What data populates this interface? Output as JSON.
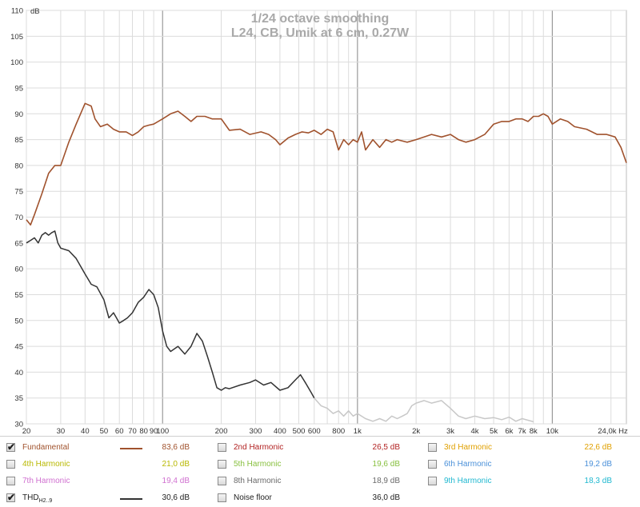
{
  "chart_data": {
    "type": "line",
    "title": "1/24 octave smoothing",
    "subtitle": "L24, CB, Umik at 6 cm, 0.27W",
    "ylabel": "dB",
    "xlabel": "Hz",
    "x_scale": "log",
    "xlim": [
      20,
      24000
    ],
    "ylim": [
      30,
      110
    ],
    "grid": true,
    "y_ticks": [
      30,
      35,
      40,
      45,
      50,
      55,
      60,
      65,
      70,
      75,
      80,
      85,
      90,
      95,
      100,
      105,
      110
    ],
    "y_tick_labels": [
      "30",
      "35",
      "40",
      "45",
      "50",
      "55",
      "60",
      "65",
      "70",
      "75",
      "80",
      "85",
      "90",
      "95",
      "100",
      "105",
      "110"
    ],
    "x_ticks": [
      20,
      30,
      40,
      50,
      60,
      70,
      80,
      90,
      100,
      200,
      300,
      400,
      500,
      600,
      800,
      1000,
      2000,
      3000,
      4000,
      5000,
      6000,
      7000,
      8000,
      10000,
      24000
    ],
    "x_tick_labels": [
      "20",
      "30",
      "40",
      "50",
      "60",
      "70",
      "80",
      "90",
      "100",
      "200",
      "300",
      "400",
      "500",
      "600",
      "800",
      "1k",
      "2k",
      "3k",
      "4k",
      "5k",
      "6k",
      "7k",
      "8k",
      "10k",
      "24,0k Hz"
    ],
    "series": [
      {
        "name": "Fundamental",
        "color": "#a0522d",
        "x": [
          20,
          21,
          22,
          24,
          26,
          28,
          30,
          33,
          36,
          40,
          43,
          45,
          48,
          52,
          56,
          60,
          65,
          70,
          75,
          80,
          85,
          90,
          100,
          110,
          120,
          130,
          140,
          150,
          165,
          180,
          200,
          220,
          250,
          280,
          320,
          350,
          380,
          400,
          440,
          480,
          520,
          560,
          600,
          650,
          700,
          750,
          800,
          850,
          900,
          950,
          1000,
          1050,
          1100,
          1200,
          1300,
          1400,
          1500,
          1600,
          1800,
          2000,
          2200,
          2400,
          2700,
          3000,
          3300,
          3600,
          4000,
          4500,
          5000,
          5500,
          6000,
          6500,
          7000,
          7500,
          8000,
          8500,
          9000,
          9500,
          10000,
          11000,
          12000,
          13000,
          15000,
          17000,
          19000,
          21000,
          22500,
          24000
        ],
        "y": [
          69.5,
          68.5,
          70.5,
          74.5,
          78.5,
          80,
          80,
          84.5,
          88,
          92,
          91.5,
          89,
          87.5,
          88,
          87,
          86.5,
          86.5,
          85.8,
          86.5,
          87.5,
          87.8,
          88,
          89,
          90,
          90.5,
          89.5,
          88.5,
          89.5,
          89.5,
          89,
          89,
          86.8,
          87,
          86,
          86.5,
          86,
          85,
          84,
          85.3,
          86,
          86.5,
          86.3,
          86.8,
          86,
          87,
          86.5,
          83,
          85,
          84,
          85,
          84.5,
          86.5,
          83,
          85,
          83.5,
          85,
          84.5,
          85,
          84.5,
          85,
          85.5,
          86,
          85.5,
          86,
          85,
          84.5,
          85,
          86,
          88,
          88.5,
          88.5,
          89,
          89,
          88.5,
          89.5,
          89.5,
          90,
          89.5,
          88,
          89,
          88.5,
          87.5,
          87,
          86,
          86,
          85.5,
          83.5,
          80.5
        ]
      },
      {
        "name": "THD",
        "color": "#333333",
        "x": [
          20,
          21,
          22,
          23,
          24,
          25,
          26,
          27,
          28,
          29,
          30,
          33,
          36,
          40,
          43,
          46,
          50,
          53,
          56,
          58,
          60,
          63,
          66,
          70,
          75,
          80,
          85,
          90,
          95,
          100,
          105,
          110,
          115,
          120,
          130,
          140,
          150,
          160,
          170,
          180,
          190,
          200,
          210,
          220,
          250,
          280,
          300,
          330,
          360,
          400,
          440,
          480,
          510,
          540,
          580,
          600
        ],
        "y": [
          65,
          65.5,
          66,
          65,
          66.5,
          67,
          66.5,
          67,
          67.3,
          65,
          64,
          63.5,
          62,
          59,
          57,
          56.5,
          54,
          50.5,
          51.5,
          50.5,
          49.5,
          50,
          50.5,
          51.5,
          53.5,
          54.5,
          56,
          55,
          52.5,
          48,
          45,
          44,
          44.5,
          45,
          43.5,
          45,
          47.5,
          46,
          43,
          40,
          37,
          36.5,
          37,
          36.8,
          37.5,
          38,
          38.5,
          37.5,
          38,
          36.5,
          37,
          38.5,
          39.5,
          38,
          36,
          35
        ]
      },
      {
        "name": "THD (noise region)",
        "color": "#c8c8c8",
        "x": [
          600,
          650,
          700,
          750,
          800,
          850,
          900,
          950,
          1000,
          1100,
          1200,
          1300,
          1400,
          1500,
          1600,
          1700,
          1800,
          1900,
          2000,
          2200,
          2400,
          2700,
          3000,
          3300,
          3600,
          4000,
          4500,
          5000,
          5500,
          6000,
          6500,
          7000,
          7500,
          8000
        ],
        "y": [
          35,
          33.5,
          33,
          32,
          32.5,
          31.5,
          32.5,
          31.5,
          32,
          31,
          30.5,
          31,
          30.5,
          31.5,
          31,
          31.5,
          32,
          33.5,
          34,
          34.5,
          34,
          34.5,
          33,
          31.5,
          31,
          31.5,
          31,
          31.2,
          30.8,
          31.3,
          30.5,
          31,
          30.7,
          30.4
        ]
      }
    ]
  },
  "legend": {
    "items": [
      {
        "label": "Fundamental",
        "value": "83,6 dB",
        "checked": true,
        "color": "#a0522d",
        "label_color": "#a0522d",
        "swatch": true
      },
      {
        "label": "2nd Harmonic",
        "value": "26,5 dB",
        "checked": false,
        "color": "#b22222",
        "label_color": "#b22222",
        "swatch": false
      },
      {
        "label": "3rd Harmonic",
        "value": "22,6 dB",
        "checked": false,
        "color": "#e0a000",
        "label_color": "#e0a000",
        "swatch": false
      },
      {
        "label": "4th Harmonic",
        "value": "21,0 dB",
        "checked": false,
        "color": "#b8b800",
        "label_color": "#b8b800",
        "swatch": false
      },
      {
        "label": "5th Harmonic",
        "value": "19,6 dB",
        "checked": false,
        "color": "#88c040",
        "label_color": "#88c040",
        "swatch": false
      },
      {
        "label": "6th Harmonic",
        "value": "19,2 dB",
        "checked": false,
        "color": "#4a90d9",
        "label_color": "#4a90d9",
        "swatch": false
      },
      {
        "label": "7th Harmonic",
        "value": "19,4 dB",
        "checked": false,
        "color": "#d070d0",
        "label_color": "#d070d0",
        "swatch": false
      },
      {
        "label": "8th Harmonic",
        "value": "18,9 dB",
        "checked": false,
        "color": "#8a8a8a",
        "label_color": "#6a6a6a",
        "swatch": false
      },
      {
        "label": "9th Harmonic",
        "value": "18,3 dB",
        "checked": false,
        "color": "#20b8d0",
        "label_color": "#20b8d0",
        "swatch": false
      },
      {
        "label": "THD",
        "sub": "H2..9",
        "value": "30,6 dB",
        "checked": true,
        "color": "#333333",
        "label_color": "#222222",
        "swatch": true
      },
      {
        "label": "Noise floor",
        "value": "36,0 dB",
        "checked": false,
        "color": "#333333",
        "label_color": "#222222",
        "swatch": false
      }
    ]
  }
}
